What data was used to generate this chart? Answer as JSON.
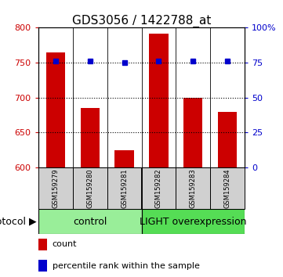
{
  "title": "GDS3056 / 1422788_at",
  "samples": [
    "GSM159279",
    "GSM159280",
    "GSM159281",
    "GSM159282",
    "GSM159283",
    "GSM159284"
  ],
  "counts": [
    765,
    685,
    625,
    792,
    700,
    680
  ],
  "percentile_ranks": [
    76,
    76,
    75,
    76,
    76,
    76
  ],
  "ylim_left": [
    600,
    800
  ],
  "ylim_right": [
    0,
    100
  ],
  "yticks_left": [
    600,
    650,
    700,
    750,
    800
  ],
  "yticks_right": [
    0,
    25,
    50,
    75,
    100
  ],
  "ytick_right_labels": [
    "0",
    "25",
    "50",
    "75",
    "100%"
  ],
  "grid_yticks": [
    650,
    700,
    750
  ],
  "bar_color": "#cc0000",
  "dot_color": "#0000cc",
  "control_label": "control",
  "treatment_label": "LIGHT overexpression",
  "control_bg": "#99ee99",
  "treatment_bg": "#55dd55",
  "protocol_label": "protocol",
  "legend_count": "count",
  "legend_percentile": "percentile rank within the sample",
  "title_fontsize": 11,
  "tick_fontsize": 8,
  "sample_fontsize": 6,
  "legend_fontsize": 8,
  "proto_fontsize": 9,
  "bar_width": 0.55
}
